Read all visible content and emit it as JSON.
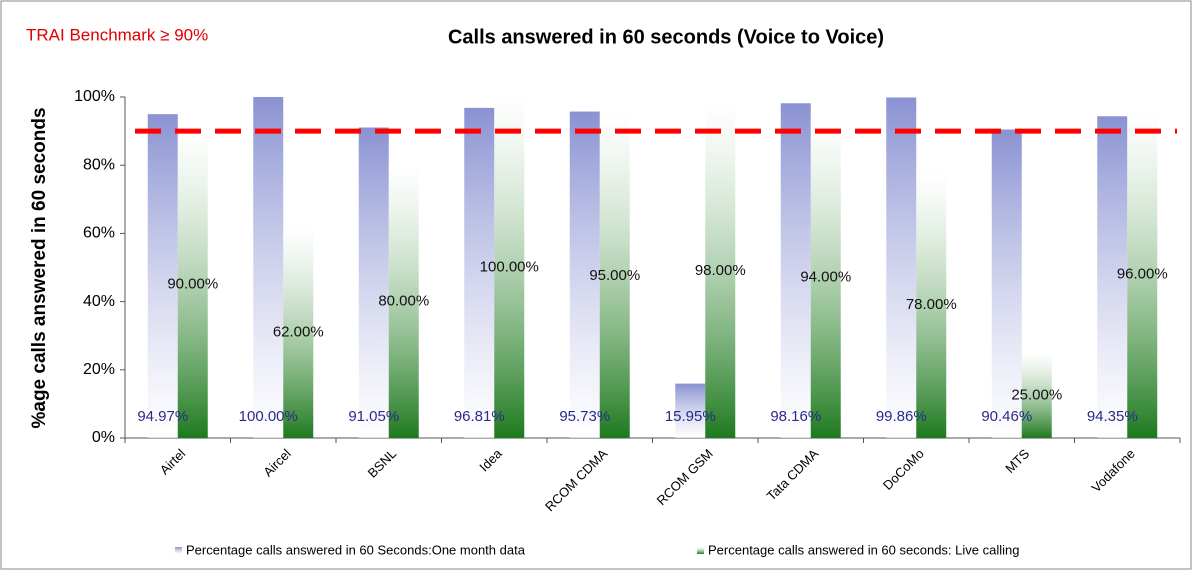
{
  "chart_data": {
    "type": "bar",
    "title": "Calls answered in 60 seconds (Voice to Voice)",
    "annotation": "TRAI Benchmark ≥ 90%",
    "benchmark": 90,
    "benchmark_color": "#ff0000",
    "y_label": "%age calls answered in 60 seconds",
    "categories": [
      "Airtel",
      "Aircel",
      "BSNL",
      "Idea",
      "RCOM CDMA",
      "RCOM GSM",
      "Tata CDMA",
      "DoCoMo",
      "MTS",
      "Vodafone"
    ],
    "series": [
      {
        "name": "Percentage calls answered in 60 Seconds:One month data",
        "color": "#8a92d2",
        "values": [
          94.97,
          100,
          91.05,
          96.81,
          95.73,
          15.95,
          98.16,
          99.86,
          90.46,
          94.35
        ],
        "value_labels": [
          "94.97%",
          "100.00%",
          "91.05%",
          "96.81%",
          "95.73%",
          "15.95%",
          "98.16%",
          "99.86%",
          "90.46%",
          "94.35%"
        ]
      },
      {
        "name": "Percentage calls answered in 60 seconds: Live calling",
        "color": "#1e7a1e",
        "values": [
          90,
          62,
          80,
          100,
          95,
          98,
          94,
          78,
          25,
          96
        ],
        "value_labels": [
          "90.00%",
          "62.00%",
          "80.00%",
          "100.00%",
          "95.00%",
          "98.00%",
          "94.00%",
          "78.00%",
          "25.00%",
          "96.00%"
        ]
      }
    ],
    "ylim": [
      0,
      100
    ],
    "yticks": [
      {
        "value": 0,
        "label": "0%"
      },
      {
        "value": 20,
        "label": "20%"
      },
      {
        "value": 40,
        "label": "40%"
      },
      {
        "value": 60,
        "label": "60%"
      },
      {
        "value": 80,
        "label": "80%"
      },
      {
        "value": 100,
        "label": "100%"
      }
    ]
  }
}
